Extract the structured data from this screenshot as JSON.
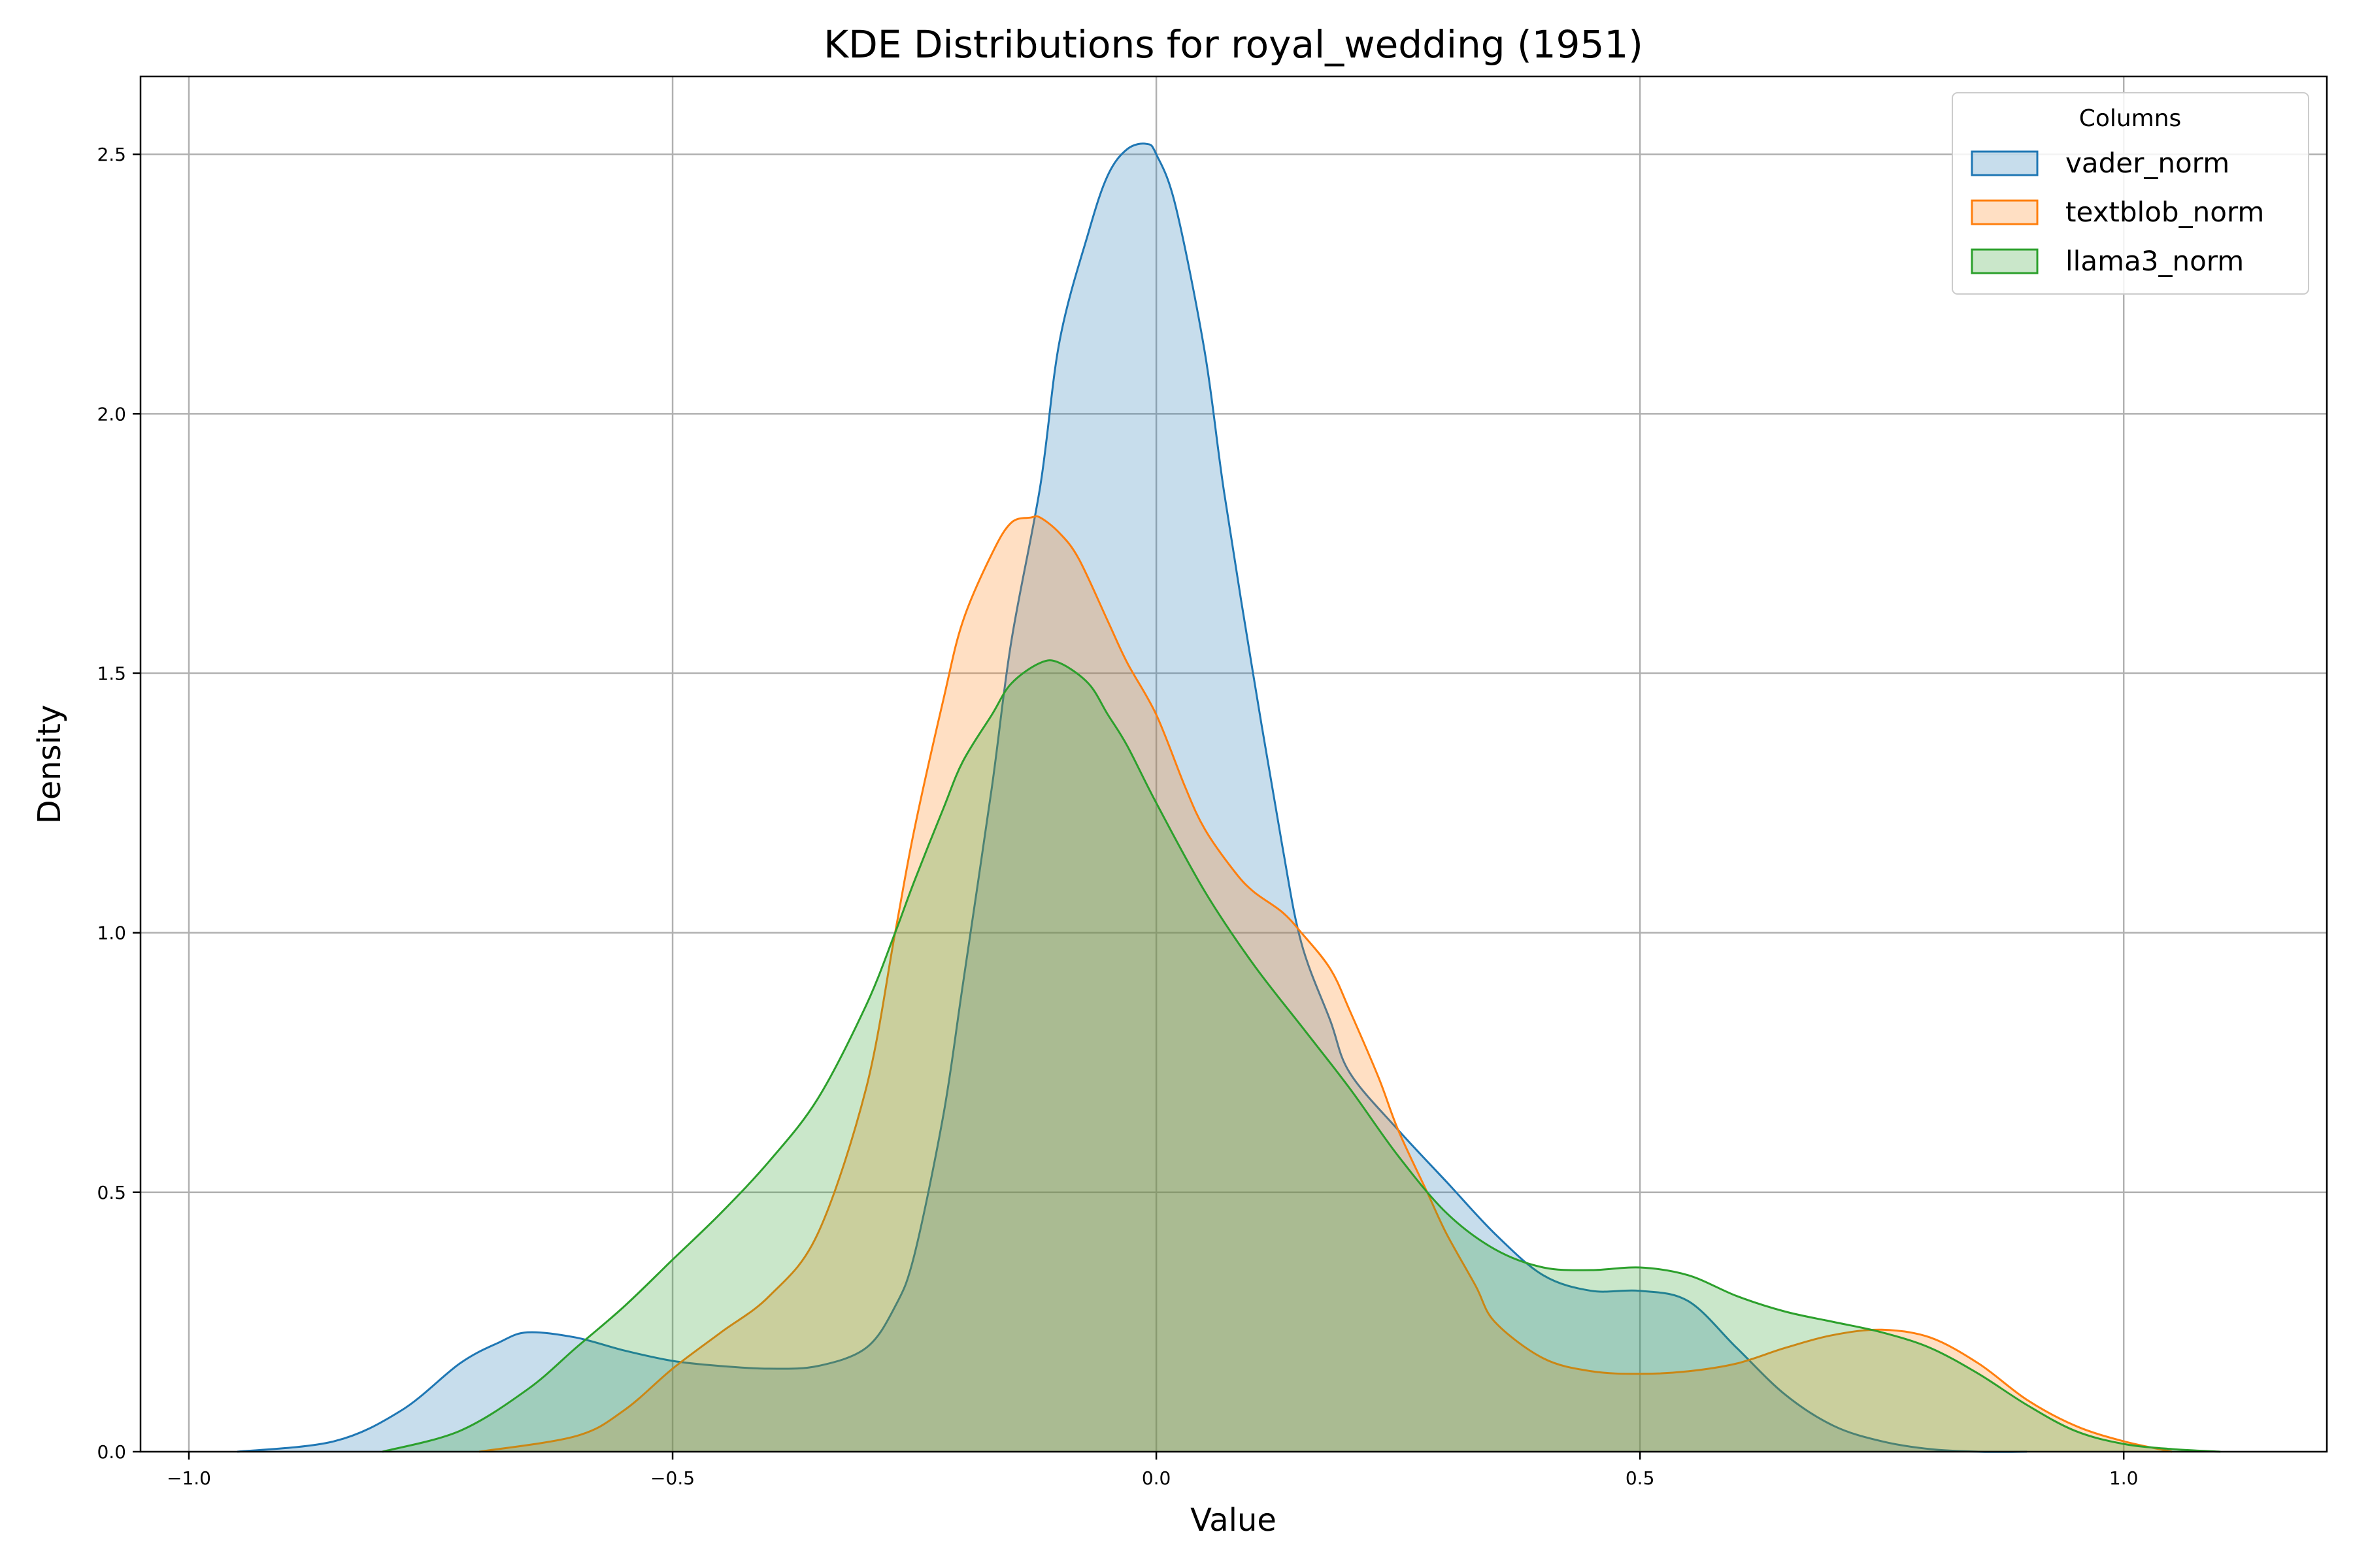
{
  "chart_data": {
    "type": "area",
    "title": "KDE Distributions for royal_wedding (1951)",
    "xlabel": "Value",
    "ylabel": "Density",
    "xlim": [
      -1.05,
      1.21
    ],
    "ylim": [
      0,
      2.65
    ],
    "xticks": [
      {
        "value": -1.0,
        "label": "−1.0"
      },
      {
        "value": -0.5,
        "label": "−0.5"
      },
      {
        "value": 0.0,
        "label": "0.0"
      },
      {
        "value": 0.5,
        "label": "0.5"
      },
      {
        "value": 1.0,
        "label": "1.0"
      }
    ],
    "yticks": [
      {
        "value": 0.0,
        "label": "0.0"
      },
      {
        "value": 0.5,
        "label": "0.5"
      },
      {
        "value": 1.0,
        "label": "1.0"
      },
      {
        "value": 1.5,
        "label": "1.5"
      },
      {
        "value": 2.0,
        "label": "2.0"
      },
      {
        "value": 2.5,
        "label": "2.5"
      }
    ],
    "grid": true,
    "legend": {
      "title": "Columns",
      "position": "top-right"
    },
    "series": [
      {
        "name": "vader_norm",
        "color": "#1f77b4",
        "x": [
          -0.95,
          -0.85,
          -0.78,
          -0.72,
          -0.68,
          -0.65,
          -0.6,
          -0.55,
          -0.5,
          -0.45,
          -0.4,
          -0.35,
          -0.3,
          -0.27,
          -0.25,
          -0.22,
          -0.2,
          -0.17,
          -0.15,
          -0.12,
          -0.1,
          -0.07,
          -0.05,
          -0.03,
          -0.01,
          0.0,
          0.02,
          0.05,
          0.07,
          0.1,
          0.13,
          0.15,
          0.18,
          0.2,
          0.25,
          0.3,
          0.35,
          0.4,
          0.45,
          0.5,
          0.55,
          0.6,
          0.65,
          0.7,
          0.75,
          0.8,
          0.85,
          0.9
        ],
        "y": [
          0.0,
          0.02,
          0.08,
          0.17,
          0.21,
          0.23,
          0.22,
          0.195,
          0.175,
          0.165,
          0.16,
          0.165,
          0.2,
          0.28,
          0.38,
          0.65,
          0.9,
          1.28,
          1.56,
          1.86,
          2.14,
          2.35,
          2.46,
          2.51,
          2.52,
          2.5,
          2.4,
          2.12,
          1.85,
          1.5,
          1.17,
          0.98,
          0.83,
          0.73,
          0.62,
          0.52,
          0.42,
          0.34,
          0.31,
          0.31,
          0.29,
          0.2,
          0.11,
          0.05,
          0.02,
          0.005,
          0.0,
          0.0
        ]
      },
      {
        "name": "textblob_norm",
        "color": "#ff7f0e",
        "x": [
          -0.7,
          -0.6,
          -0.55,
          -0.5,
          -0.45,
          -0.4,
          -0.35,
          -0.3,
          -0.27,
          -0.25,
          -0.22,
          -0.2,
          -0.17,
          -0.15,
          -0.13,
          -0.12,
          -0.1,
          -0.08,
          -0.05,
          -0.03,
          0.0,
          0.03,
          0.05,
          0.08,
          0.1,
          0.13,
          0.15,
          0.18,
          0.2,
          0.23,
          0.25,
          0.28,
          0.3,
          0.33,
          0.35,
          0.4,
          0.45,
          0.5,
          0.55,
          0.6,
          0.65,
          0.7,
          0.75,
          0.8,
          0.85,
          0.9,
          0.95,
          1.0,
          1.05
        ],
        "y": [
          0.0,
          0.03,
          0.08,
          0.16,
          0.23,
          0.3,
          0.42,
          0.7,
          1.0,
          1.2,
          1.45,
          1.6,
          1.73,
          1.79,
          1.8,
          1.8,
          1.77,
          1.72,
          1.6,
          1.52,
          1.42,
          1.28,
          1.2,
          1.12,
          1.08,
          1.04,
          1.0,
          0.93,
          0.85,
          0.72,
          0.62,
          0.5,
          0.42,
          0.32,
          0.25,
          0.18,
          0.155,
          0.15,
          0.155,
          0.17,
          0.2,
          0.225,
          0.235,
          0.22,
          0.17,
          0.1,
          0.05,
          0.02,
          0.0
        ]
      },
      {
        "name": "llama3_norm",
        "color": "#2ca02c",
        "x": [
          -0.8,
          -0.72,
          -0.65,
          -0.6,
          -0.55,
          -0.5,
          -0.45,
          -0.4,
          -0.35,
          -0.3,
          -0.27,
          -0.25,
          -0.22,
          -0.2,
          -0.17,
          -0.15,
          -0.12,
          -0.1,
          -0.07,
          -0.05,
          -0.03,
          0.0,
          0.05,
          0.1,
          0.15,
          0.2,
          0.25,
          0.3,
          0.35,
          0.4,
          0.45,
          0.5,
          0.55,
          0.6,
          0.65,
          0.7,
          0.75,
          0.8,
          0.85,
          0.9,
          0.95,
          1.0,
          1.05,
          1.1
        ],
        "y": [
          0.0,
          0.04,
          0.12,
          0.2,
          0.28,
          0.37,
          0.46,
          0.56,
          0.68,
          0.86,
          1.0,
          1.1,
          1.24,
          1.33,
          1.42,
          1.48,
          1.52,
          1.52,
          1.48,
          1.42,
          1.36,
          1.25,
          1.08,
          0.94,
          0.82,
          0.7,
          0.57,
          0.46,
          0.39,
          0.355,
          0.35,
          0.355,
          0.34,
          0.3,
          0.27,
          0.25,
          0.23,
          0.2,
          0.15,
          0.09,
          0.04,
          0.015,
          0.005,
          0.0
        ]
      }
    ]
  }
}
